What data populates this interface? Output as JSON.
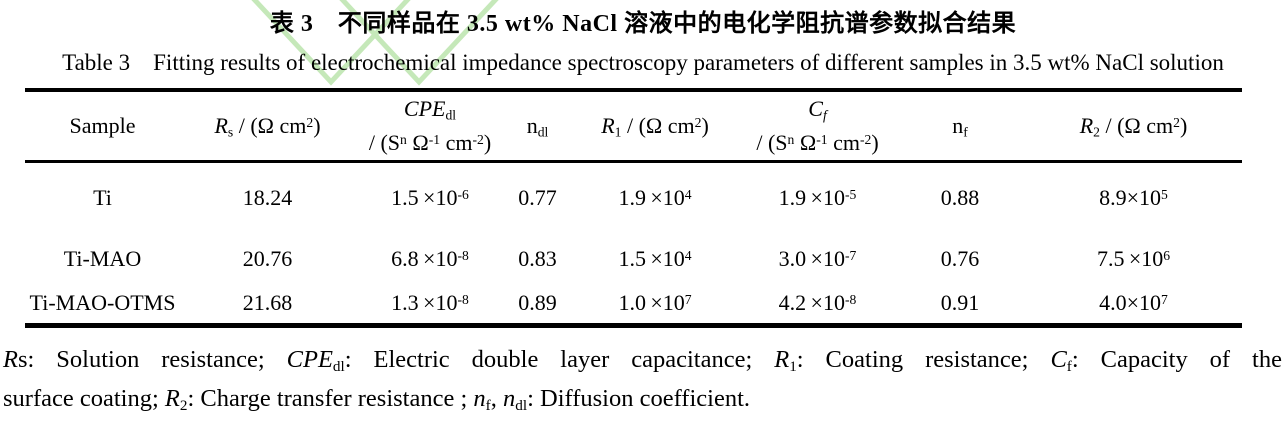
{
  "page": {
    "title_zh": "表 3　不同样品在 3.5 wt% NaCl 溶液中的电化学阻抗谱参数拟合结果",
    "title_en": "Table 3　Fitting results of electrochemical impedance spectroscopy parameters of different samples in 3.5 wt% NaCl solution"
  },
  "watermark": {
    "icon": "green-double-chevron-watermark-icon",
    "color": "#b7e3a8"
  },
  "colors": {
    "text": "#000000",
    "rule": "#000000",
    "background": "#ffffff"
  },
  "table": {
    "headers_html": [
      "Sample",
      "<i>R</i><sub>s</sub> / (Ω cm<sup>2</sup>)",
      "<i>CPE</i><sub>dl</sub><br>/ (S<sup>n</sup> Ω<sup>-1</sup> cm<sup>-2</sup>)",
      "n<sub>dl</sub>",
      "<i>R</i><sub>1</sub> / (Ω cm<sup>2</sup>)",
      "<i>C<sub>f</sub></i><br>/ (S<sup>n</sup> Ω<sup>-1</sup> cm<sup>-2</sup>)",
      "n<sub>f</sub>",
      "<i>R</i><sub>2</sub> / (Ω cm<sup>2</sup>)"
    ],
    "rows_html": [
      [
        "Ti",
        "18.24",
        "1.5&#8201;×10<sup>-6</sup>",
        "0.77",
        "1.9&#8201;×10<sup>4</sup>",
        "1.9&#8201;×10<sup>-5</sup>",
        "0.88",
        "8.9×10<sup>5</sup>"
      ],
      [
        "Ti-MAO",
        "20.76",
        "6.8&#8201;×10<sup>-8</sup>",
        "0.83",
        "1.5&#8201;×10<sup>4</sup>",
        "3.0&#8201;×10<sup>-7</sup>",
        "0.76",
        "7.5&#8201;×10<sup>6</sup>"
      ],
      [
        "Ti-MAO-OTMS",
        "21.68",
        "1.3&#8201;×10<sup>-8</sup>",
        "0.89",
        "1.0&#8201;×10<sup>7</sup>",
        "4.2&#8201;×10<sup>-8</sup>",
        "0.91",
        "4.0×10<sup>7</sup>"
      ]
    ]
  },
  "footnote": {
    "line1_html": "<i>R</i>s: Solution resistance; <i>CPE</i><sub>dl</sub>: Electric double layer capacitance; <i>R</i><sub>1</sub>: Coating resistance; <i>C</i><sub>f</sub>: Capacity of the",
    "line2_html": "surface coating; <i>R</i><sub>2</sub>: Charge transfer resistance ; <i>n</i><sub>f</sub>, <i>n</i><sub>dl</sub>: Diffusion coefficient."
  },
  "chart_data": {
    "type": "table",
    "title": "Table 3 Fitting results of electrochemical impedance spectroscopy parameters of different samples in 3.5 wt% NaCl solution",
    "categories": [
      "Ti",
      "Ti-MAO",
      "Ti-MAO-OTMS"
    ],
    "series": [
      {
        "name": "Rs / (Ohm cm2)",
        "values": [
          18.24,
          20.76,
          21.68
        ]
      },
      {
        "name": "CPEdl / (Sn Ohm-1 cm-2)",
        "values": [
          1.5e-06,
          6.8e-08,
          1.3e-08
        ]
      },
      {
        "name": "ndl",
        "values": [
          0.77,
          0.83,
          0.89
        ]
      },
      {
        "name": "R1 / (Ohm cm2)",
        "values": [
          19000,
          15000,
          10000000
        ]
      },
      {
        "name": "Cf / (Sn Ohm-1 cm-2)",
        "values": [
          1.9e-05,
          3e-07,
          4.2e-08
        ]
      },
      {
        "name": "nf",
        "values": [
          0.88,
          0.76,
          0.91
        ]
      },
      {
        "name": "R2 / (Ohm cm2)",
        "values": [
          890000,
          7500000,
          40000000
        ]
      }
    ]
  }
}
